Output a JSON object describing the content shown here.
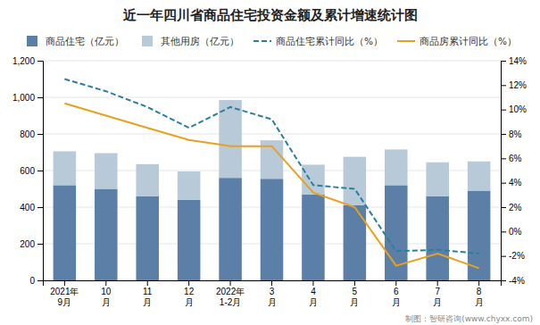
{
  "chart_data": {
    "type": "bar",
    "title": "近一年四川省商品住宅投资金额及累计增速统计图",
    "categories": [
      "2021年\n9月",
      "10\n月",
      "11\n月",
      "12\n月",
      "2022年\n1-2月",
      "3\n月",
      "4\n月",
      "5\n月",
      "6\n月",
      "7\n月",
      "8\n月"
    ],
    "stacked": true,
    "series": [
      {
        "name": "商品住宅（亿元）",
        "color": "#5b7fa6",
        "values": [
          520,
          500,
          460,
          440,
          560,
          555,
          470,
          410,
          520,
          460,
          490
        ]
      },
      {
        "name": "其他用房（亿元）",
        "color": "#b8c9d8",
        "values": [
          185,
          195,
          175,
          155,
          425,
          210,
          162,
          265,
          195,
          185,
          160
        ]
      },
      {
        "name": "商品住宅累计同比（%）",
        "type": "line",
        "axis": "y2",
        "line_style": "dashed",
        "color": "#2a7fa0",
        "values": [
          12.5,
          11.5,
          10.2,
          8.5,
          10.2,
          9.2,
          3.8,
          3.5,
          -1.6,
          -1.5,
          -1.8
        ]
      },
      {
        "name": "商品房累计同比（%）",
        "type": "line",
        "axis": "y2",
        "line_style": "solid",
        "color": "#e8a020",
        "values": [
          10.5,
          9.5,
          8.5,
          7.5,
          7.0,
          7.0,
          3.2,
          2.0,
          -2.8,
          -1.8,
          -3.0
        ]
      }
    ],
    "ylim": [
      0,
      1200
    ],
    "yticks": [
      0,
      200,
      400,
      600,
      800,
      {
        "value": 1000,
        "label": "1,000"
      },
      {
        "value": 1200,
        "label": "1,200"
      }
    ],
    "y2lim": [
      -4,
      14
    ],
    "y2ticks": [
      {
        "value": -4,
        "label": "-4%"
      },
      {
        "value": -2,
        "label": "-2%"
      },
      {
        "value": 0,
        "label": "0%"
      },
      {
        "value": 2,
        "label": "2%"
      },
      {
        "value": 4,
        "label": "4%"
      },
      {
        "value": 6,
        "label": "6%"
      },
      {
        "value": 8,
        "label": "8%"
      },
      {
        "value": 10,
        "label": "10%"
      },
      {
        "value": 12,
        "label": "12%"
      },
      {
        "value": 14,
        "label": "14%"
      }
    ],
    "grid": true,
    "legend": "top",
    "annotations": [
      "制图：智研咨询(www.chyxx.com)"
    ]
  }
}
